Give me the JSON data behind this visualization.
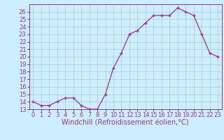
{
  "x": [
    0,
    1,
    2,
    3,
    4,
    5,
    6,
    7,
    8,
    9,
    10,
    11,
    12,
    13,
    14,
    15,
    16,
    17,
    18,
    19,
    20,
    21,
    22,
    23
  ],
  "y": [
    14,
    13.5,
    13.5,
    14,
    14.5,
    14.5,
    13.5,
    13,
    13,
    15,
    18.5,
    20.5,
    23,
    23.5,
    24.5,
    25.5,
    25.5,
    25.5,
    26.5,
    26,
    25.5,
    23,
    20.5,
    20
  ],
  "line_color": "#993399",
  "marker": "+",
  "bg_color": "#cceeff",
  "grid_color": "#aacccc",
  "xlabel": "Windchill (Refroidissement éolien,°C)",
  "ylim": [
    13,
    27
  ],
  "xlim": [
    -0.5,
    23.5
  ],
  "yticks": [
    13,
    14,
    15,
    16,
    17,
    18,
    19,
    20,
    21,
    22,
    23,
    24,
    25,
    26
  ],
  "xticks": [
    0,
    1,
    2,
    3,
    4,
    5,
    6,
    7,
    8,
    9,
    10,
    11,
    12,
    13,
    14,
    15,
    16,
    17,
    18,
    19,
    20,
    21,
    22,
    23
  ],
  "tick_color": "#993399",
  "label_color": "#993399",
  "font_size": 6,
  "xlabel_fontsize": 7,
  "marker_size": 3,
  "linewidth": 0.9
}
